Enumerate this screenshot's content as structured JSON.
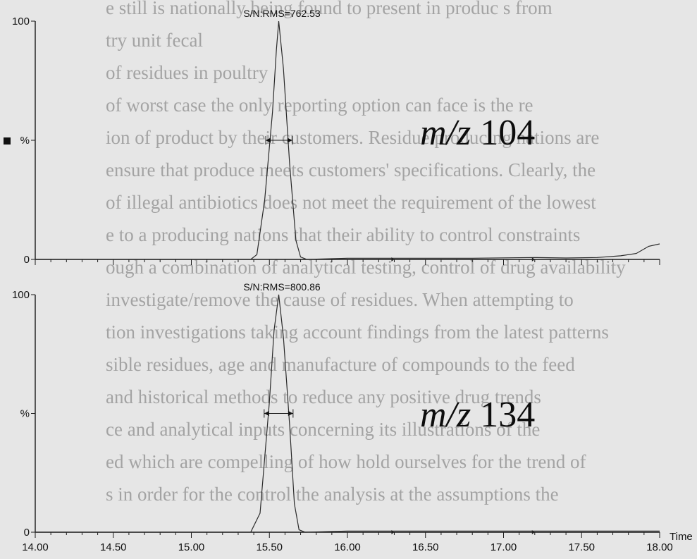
{
  "background_text": [
    "e still is nationally being found to present in produc s from",
    "try unit fecal",
    "of residues in poultry",
    "of worst case the only reporting option can face is the re",
    "ion of product by their customers. Residue producing nations are",
    "ensure that produce meets customers' specifications. Clearly, the",
    "of illegal antibiotics does not meet the requirement of the lowest",
    "e to a producing nations that their ability to control constraints",
    "ough a combination of analytical testing, control of drug availability",
    "investigate/remove the cause of residues. When attempting to",
    "tion investigations taking account findings from the latest patterns",
    "sible residues, age and manufacture of compounds to the feed",
    "and historical methods to reduce any positive drug trends",
    "ce and analytical inputs concerning its illustrations of the",
    "ed which are compelling of how hold ourselves for the trend of",
    "s in order for the control the analysis at the assumptions the"
  ],
  "chart_data": [
    {
      "type": "line",
      "annotation": "S/N:RMS=762.53",
      "mz_prefix": "m/z",
      "mz_value": "104",
      "ylabel": "%",
      "ytick_labels": [
        "100",
        "%",
        "0"
      ],
      "yticks": [
        100,
        50,
        0
      ],
      "ylim": [
        0,
        100
      ],
      "xlim": [
        14.0,
        18.0
      ],
      "x": [
        14.0,
        14.5,
        15.0,
        15.3,
        15.38,
        15.42,
        15.47,
        15.52,
        15.545,
        15.56,
        15.59,
        15.63,
        15.67,
        15.7,
        15.74,
        16.0,
        16.3,
        16.8,
        17.2,
        17.4,
        17.6,
        17.75,
        17.85,
        17.93,
        18.0
      ],
      "y": [
        0,
        0,
        0,
        0,
        0,
        2,
        25,
        62,
        88,
        100,
        80,
        40,
        8,
        1,
        0,
        0.5,
        0.5,
        0.5,
        0.8,
        0.6,
        0.8,
        1.5,
        2.5,
        5.5,
        6.5
      ]
    },
    {
      "type": "line",
      "annotation": "S/N:RMS=800.86",
      "mz_prefix": "m/z",
      "mz_value": "134",
      "ylabel": "%",
      "ytick_labels": [
        "100",
        "%",
        "0"
      ],
      "yticks": [
        100,
        50,
        0
      ],
      "ylim": [
        0,
        100
      ],
      "xlim": [
        14.0,
        18.0
      ],
      "xlabel": "Time",
      "xtick_labels": [
        "14.00",
        "14.50",
        "15.00",
        "15.50",
        "16.00",
        "16.50",
        "17.00",
        "17.50",
        "18.00"
      ],
      "xticks": [
        14.0,
        14.5,
        15.0,
        15.5,
        16.0,
        16.5,
        17.0,
        17.5,
        18.0
      ],
      "x": [
        14.0,
        14.5,
        15.0,
        15.3,
        15.38,
        15.44,
        15.5,
        15.53,
        15.56,
        15.59,
        15.63,
        15.66,
        15.69,
        15.73,
        16.0,
        16.5,
        17.0,
        17.5,
        18.0
      ],
      "y": [
        0,
        0,
        0,
        0,
        0,
        8,
        55,
        85,
        100,
        82,
        45,
        12,
        1,
        0,
        0.5,
        0.5,
        0.5,
        0.5,
        0.5
      ]
    }
  ]
}
